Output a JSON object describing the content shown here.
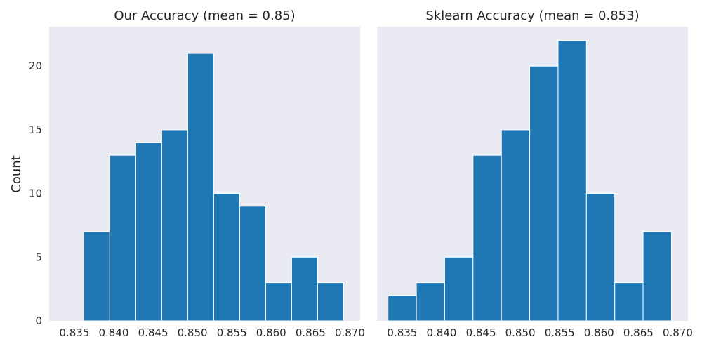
{
  "figure": {
    "ylabel": "Count"
  },
  "chart_data": [
    {
      "type": "bar",
      "title": "Our Accuracy (mean = 0.85)",
      "xlabel": "",
      "ylabel": "Count",
      "bar_color": "#1f77b4",
      "grid": false,
      "xlim": [
        0.8318,
        0.8713
      ],
      "ylim": [
        0,
        23.1
      ],
      "xticks": [
        0.835,
        0.84,
        0.845,
        0.85,
        0.855,
        0.86,
        0.865,
        0.87
      ],
      "xtick_labels": [
        "0.835",
        "0.840",
        "0.845",
        "0.850",
        "0.855",
        "0.860",
        "0.865",
        "0.870"
      ],
      "yticks": [
        0,
        5,
        10,
        15,
        20
      ],
      "ytick_labels": [
        "0",
        "5",
        "10",
        "15",
        "20"
      ],
      "bins": [
        {
          "x0": 0.8362,
          "x1": 0.8395,
          "count": 7
        },
        {
          "x0": 0.8395,
          "x1": 0.8428,
          "count": 13
        },
        {
          "x0": 0.8428,
          "x1": 0.8461,
          "count": 14
        },
        {
          "x0": 0.8461,
          "x1": 0.8494,
          "count": 15
        },
        {
          "x0": 0.8494,
          "x1": 0.8527,
          "count": 21
        },
        {
          "x0": 0.8527,
          "x1": 0.856,
          "count": 10
        },
        {
          "x0": 0.856,
          "x1": 0.8593,
          "count": 9
        },
        {
          "x0": 0.8593,
          "x1": 0.8626,
          "count": 3
        },
        {
          "x0": 0.8626,
          "x1": 0.8659,
          "count": 5
        },
        {
          "x0": 0.8659,
          "x1": 0.8692,
          "count": 3
        }
      ]
    },
    {
      "type": "bar",
      "title": "Sklearn Accuracy (mean = 0.853)",
      "xlabel": "",
      "ylabel": "",
      "bar_color": "#1f77b4",
      "grid": false,
      "xlim": [
        0.8318,
        0.8713
      ],
      "ylim": [
        0,
        23.1
      ],
      "xticks": [
        0.835,
        0.84,
        0.845,
        0.85,
        0.855,
        0.86,
        0.865,
        0.87
      ],
      "xtick_labels": [
        "0.835",
        "0.840",
        "0.845",
        "0.850",
        "0.855",
        "0.860",
        "0.865",
        "0.870"
      ],
      "yticks": [],
      "ytick_labels": [],
      "bins": [
        {
          "x0": 0.8332,
          "x1": 0.8368,
          "count": 2
        },
        {
          "x0": 0.8368,
          "x1": 0.8404,
          "count": 3
        },
        {
          "x0": 0.8404,
          "x1": 0.844,
          "count": 5
        },
        {
          "x0": 0.844,
          "x1": 0.8476,
          "count": 13
        },
        {
          "x0": 0.8476,
          "x1": 0.8512,
          "count": 15
        },
        {
          "x0": 0.8512,
          "x1": 0.8548,
          "count": 20
        },
        {
          "x0": 0.8548,
          "x1": 0.8584,
          "count": 22
        },
        {
          "x0": 0.8584,
          "x1": 0.862,
          "count": 10
        },
        {
          "x0": 0.862,
          "x1": 0.8656,
          "count": 3
        },
        {
          "x0": 0.8656,
          "x1": 0.8692,
          "count": 7
        }
      ]
    }
  ]
}
